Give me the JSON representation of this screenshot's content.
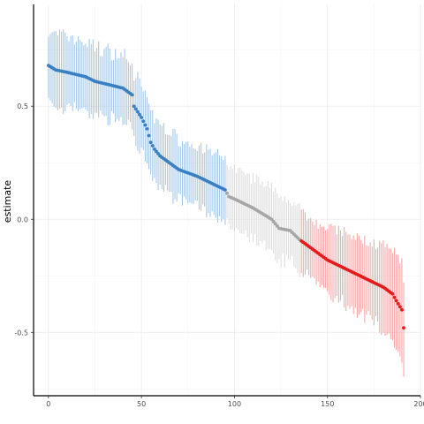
{
  "chart_data": {
    "type": "scatter",
    "title": "",
    "xlabel": "",
    "ylabel": "estimate",
    "xlim": [
      -8,
      200
    ],
    "ylim": [
      -0.78,
      0.95
    ],
    "x_ticks": [
      0,
      50,
      100,
      150,
      200
    ],
    "x_tick_labels": [
      "0",
      "50",
      "100",
      "150",
      "200"
    ],
    "y_ticks": [
      -0.5,
      0.0,
      0.5
    ],
    "y_tick_labels": [
      "-0.5",
      "0.0",
      "0.5"
    ],
    "grid": true,
    "legend": "none",
    "point_count": 192,
    "estimate_profile_x": [
      0,
      2,
      4,
      10,
      20,
      25,
      30,
      35,
      40,
      45,
      46,
      50,
      53,
      55,
      57,
      60,
      65,
      70,
      80,
      85,
      90,
      95,
      97,
      100,
      110,
      120,
      124,
      130,
      135,
      140,
      145,
      150,
      155,
      160,
      165,
      170,
      175,
      180,
      185,
      187,
      190,
      191
    ],
    "estimate_profile_y": [
      0.68,
      0.67,
      0.66,
      0.65,
      0.63,
      0.61,
      0.6,
      0.59,
      0.58,
      0.55,
      0.5,
      0.45,
      0.4,
      0.34,
      0.31,
      0.28,
      0.25,
      0.22,
      0.19,
      0.17,
      0.15,
      0.13,
      0.1,
      0.09,
      0.05,
      0.0,
      -0.04,
      -0.05,
      -0.09,
      -0.12,
      -0.15,
      -0.18,
      -0.2,
      -0.22,
      -0.24,
      -0.26,
      -0.28,
      -0.3,
      -0.33,
      -0.36,
      -0.4,
      -0.48
    ],
    "interval_halfwidth_profile_x": [
      0,
      50,
      100,
      150,
      191
    ],
    "interval_halfwidth_profile_y": [
      0.16,
      0.14,
      0.13,
      0.14,
      0.2
    ],
    "series": [
      {
        "group": "positive",
        "x_range": [
          0,
          95
        ],
        "color": "#3a7fc1",
        "interval_color": "#9dc2e4"
      },
      {
        "group": "not-significant",
        "x_range": [
          96,
          135
        ],
        "color": "#a6a6a6",
        "interval_color": "#d9d9d9"
      },
      {
        "group": "negative",
        "x_range": [
          136,
          191
        ],
        "color": "#e41a1c",
        "interval_color": "#f3a0a1"
      }
    ]
  }
}
